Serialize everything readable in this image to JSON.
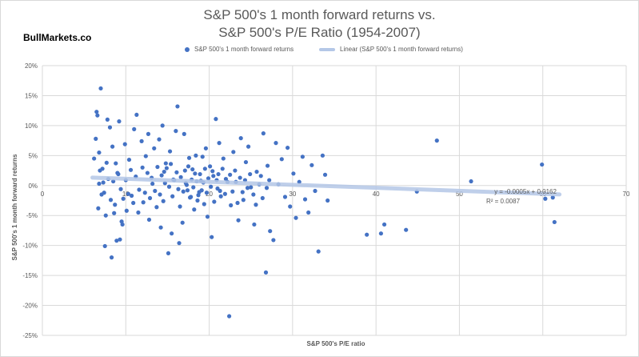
{
  "brand": "BullMarkets.co",
  "chart_data": {
    "type": "scatter",
    "title_lines": [
      "S&P 500's 1 month forward returns vs.",
      "S&P 500's P/E Ratio (1954-2007)"
    ],
    "xlabel": "S&P 500's P/E ratio",
    "ylabel": "S&P 500's 1 month forward returns",
    "xlim": [
      0,
      70
    ],
    "ylim": [
      -25,
      20
    ],
    "x_ticks": [
      0,
      10,
      20,
      30,
      40,
      50,
      60,
      70
    ],
    "y_ticks": [
      -25,
      -20,
      -15,
      -10,
      -5,
      0,
      5,
      10,
      15,
      20
    ],
    "y_tick_labels": [
      "-25%",
      "-20%",
      "-15%",
      "-10%",
      "-5%",
      "0%",
      "5%",
      "10%",
      "15%",
      "20%"
    ],
    "grid": true,
    "legend_placement": "top",
    "colors": {
      "points": "#4472c4",
      "trendline": "#b4c7e7",
      "text": "#595959",
      "grid": "#d9d9d9"
    },
    "series": [
      {
        "name": "S&P 500's 1 month forward returns",
        "kind": "points",
        "points": [
          [
            6.2,
            4.5
          ],
          [
            6.5,
            12.3
          ],
          [
            6.6,
            11.7
          ],
          [
            7.0,
            16.2
          ],
          [
            6.4,
            7.8
          ],
          [
            6.8,
            5.5
          ],
          [
            6.9,
            2.5
          ],
          [
            7.1,
            -1.5
          ],
          [
            6.7,
            -3.8
          ],
          [
            7.3,
            0.5
          ],
          [
            7.5,
            -10.1
          ],
          [
            7.6,
            -5.0
          ],
          [
            7.8,
            11.0
          ],
          [
            8.1,
            9.7
          ],
          [
            8.3,
            -12.0
          ],
          [
            8.7,
            -3.2
          ],
          [
            8.9,
            -9.2
          ],
          [
            9.2,
            10.7
          ],
          [
            9.3,
            -9.0
          ],
          [
            9.6,
            -6.5
          ],
          [
            9.9,
            6.9
          ],
          [
            10.1,
            -4.2
          ],
          [
            10.4,
            4.3
          ],
          [
            10.7,
            -1.7
          ],
          [
            11.0,
            9.4
          ],
          [
            11.3,
            11.8
          ],
          [
            11.5,
            -4.5
          ],
          [
            11.9,
            7.4
          ],
          [
            12.1,
            -2.8
          ],
          [
            12.4,
            4.9
          ],
          [
            12.7,
            8.6
          ],
          [
            12.8,
            -5.7
          ],
          [
            13.1,
            1.3
          ],
          [
            13.4,
            6.2
          ],
          [
            13.7,
            -3.6
          ],
          [
            14.0,
            7.7
          ],
          [
            14.2,
            -7.0
          ],
          [
            14.4,
            10.0
          ],
          [
            14.6,
            2.3
          ],
          [
            14.8,
            3.7
          ],
          [
            15.1,
            -11.3
          ],
          [
            15.3,
            5.7
          ],
          [
            15.5,
            -8.0
          ],
          [
            15.7,
            1.0
          ],
          [
            16.0,
            9.1
          ],
          [
            16.2,
            13.2
          ],
          [
            16.4,
            -9.6
          ],
          [
            16.5,
            -3.5
          ],
          [
            16.8,
            -6.2
          ],
          [
            17.0,
            8.6
          ],
          [
            17.2,
            0.4
          ],
          [
            17.4,
            -0.8
          ],
          [
            17.6,
            4.6
          ],
          [
            17.8,
            -1.9
          ],
          [
            18.0,
            2.7
          ],
          [
            18.2,
            -4.0
          ],
          [
            18.4,
            5.0
          ],
          [
            18.6,
            -2.5
          ],
          [
            18.8,
            -1.1
          ],
          [
            19.0,
            0.8
          ],
          [
            19.2,
            4.8
          ],
          [
            19.4,
            -3.1
          ],
          [
            19.6,
            6.2
          ],
          [
            19.8,
            -5.2
          ],
          [
            20.1,
            3.2
          ],
          [
            20.3,
            -8.6
          ],
          [
            20.5,
            1.6
          ],
          [
            20.8,
            11.1
          ],
          [
            21.0,
            -0.5
          ],
          [
            21.2,
            7.1
          ],
          [
            21.4,
            -1.8
          ],
          [
            21.7,
            4.5
          ],
          [
            22.0,
            1.1
          ],
          [
            22.4,
            -21.8
          ],
          [
            22.6,
            -3.3
          ],
          [
            22.9,
            5.6
          ],
          [
            23.2,
            0.6
          ],
          [
            23.5,
            -5.8
          ],
          [
            23.8,
            7.9
          ],
          [
            24.1,
            -2.4
          ],
          [
            24.4,
            3.9
          ],
          [
            24.7,
            6.5
          ],
          [
            25.0,
            -0.3
          ],
          [
            25.4,
            -6.5
          ],
          [
            25.7,
            2.3
          ],
          [
            26.2,
            1.6
          ],
          [
            26.5,
            8.7
          ],
          [
            26.8,
            -14.5
          ],
          [
            27.0,
            3.3
          ],
          [
            27.3,
            -7.6
          ],
          [
            27.7,
            -9.1
          ],
          [
            28.0,
            7.1
          ],
          [
            28.3,
            0.2
          ],
          [
            28.7,
            4.4
          ],
          [
            29.1,
            -1.9
          ],
          [
            29.4,
            6.3
          ],
          [
            29.7,
            -3.5
          ],
          [
            30.1,
            2.0
          ],
          [
            30.4,
            -5.4
          ],
          [
            30.8,
            0.6
          ],
          [
            31.2,
            4.8
          ],
          [
            31.5,
            -2.3
          ],
          [
            31.9,
            -4.5
          ],
          [
            32.3,
            3.4
          ],
          [
            32.7,
            -0.9
          ],
          [
            33.1,
            -11.0
          ],
          [
            33.6,
            5.0
          ],
          [
            33.9,
            1.8
          ],
          [
            34.2,
            -2.5
          ],
          [
            38.9,
            -8.2
          ],
          [
            40.6,
            -8.0
          ],
          [
            41.0,
            -6.5
          ],
          [
            43.6,
            -7.4
          ],
          [
            44.9,
            -1.0
          ],
          [
            47.3,
            7.5
          ],
          [
            51.4,
            0.7
          ],
          [
            59.9,
            3.5
          ],
          [
            60.3,
            -2.2
          ],
          [
            61.2,
            -2.0
          ],
          [
            61.4,
            -6.1
          ],
          [
            8.4,
            6.5
          ],
          [
            8.8,
            3.7
          ],
          [
            9.1,
            1.9
          ],
          [
            9.4,
            -0.6
          ],
          [
            9.7,
            -2.2
          ],
          [
            10.0,
            0.9
          ],
          [
            10.3,
            -1.4
          ],
          [
            10.6,
            2.6
          ],
          [
            10.9,
            -2.9
          ],
          [
            11.2,
            1.5
          ],
          [
            11.6,
            -0.7
          ],
          [
            12.0,
            3.0
          ],
          [
            12.3,
            -1.2
          ],
          [
            12.6,
            2.1
          ],
          [
            12.9,
            -2.1
          ],
          [
            13.2,
            0.3
          ],
          [
            13.5,
            -0.9
          ],
          [
            13.8,
            3.1
          ],
          [
            14.1,
            -1.5
          ],
          [
            14.3,
            1.7
          ],
          [
            14.5,
            -2.6
          ],
          [
            14.7,
            0.4
          ],
          [
            14.9,
            2.9
          ],
          [
            15.2,
            -0.2
          ],
          [
            15.4,
            3.6
          ],
          [
            15.6,
            -1.8
          ],
          [
            15.8,
            0.9
          ],
          [
            16.1,
            2.2
          ],
          [
            16.3,
            -0.6
          ],
          [
            16.6,
            1.4
          ],
          [
            16.9,
            -1.0
          ],
          [
            17.1,
            2.5
          ],
          [
            17.3,
            0.1
          ],
          [
            17.5,
            3.2
          ],
          [
            17.7,
            -2.0
          ],
          [
            17.9,
            1.0
          ],
          [
            18.1,
            -0.3
          ],
          [
            18.3,
            2.0
          ],
          [
            18.5,
            0.7
          ],
          [
            18.7,
            -1.6
          ],
          [
            18.9,
            1.9
          ],
          [
            19.1,
            -0.8
          ],
          [
            19.3,
            0.5
          ],
          [
            19.5,
            2.8
          ],
          [
            19.7,
            -1.2
          ],
          [
            19.9,
            1.2
          ],
          [
            20.2,
            -0.2
          ],
          [
            20.4,
            2.4
          ],
          [
            20.6,
            -2.7
          ],
          [
            20.9,
            0.9
          ],
          [
            21.1,
            1.9
          ],
          [
            21.3,
            -0.9
          ],
          [
            21.6,
            2.8
          ],
          [
            21.9,
            -1.4
          ],
          [
            22.2,
            0.6
          ],
          [
            22.5,
            1.8
          ],
          [
            22.8,
            -1.0
          ],
          [
            23.1,
            2.5
          ],
          [
            23.4,
            -2.9
          ],
          [
            23.7,
            1.3
          ],
          [
            24.0,
            -1.1
          ],
          [
            24.3,
            0.9
          ],
          [
            24.6,
            -0.4
          ],
          [
            24.9,
            1.9
          ],
          [
            25.3,
            -1.5
          ],
          [
            25.6,
            -3.2
          ],
          [
            26.0,
            0.2
          ],
          [
            26.4,
            -2.1
          ],
          [
            26.9,
            -0.4
          ],
          [
            27.2,
            0.9
          ],
          [
            6.8,
            0.3
          ],
          [
            7.2,
            2.8
          ],
          [
            7.4,
            -1.2
          ],
          [
            7.7,
            3.8
          ],
          [
            7.9,
            1.1
          ],
          [
            8.2,
            -2.4
          ],
          [
            8.5,
            0.7
          ],
          [
            8.6,
            -4.6
          ],
          [
            9.0,
            2.1
          ],
          [
            9.5,
            -6.0
          ]
        ]
      },
      {
        "name": "Linear (S&P 500's 1 month forward returns)",
        "kind": "trendline",
        "equation": "y = -0.0005x + 0.0162",
        "r_squared": "R² = 0.0087",
        "slope_pct_per_unit": -0.05,
        "intercept_pct": 1.62,
        "x_range": [
          6,
          62
        ]
      }
    ]
  }
}
